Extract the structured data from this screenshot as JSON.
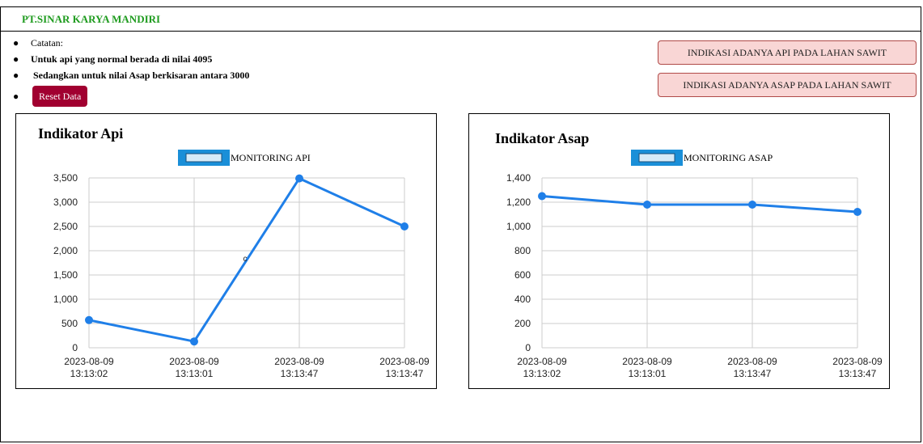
{
  "header": {
    "brand": "PT.SINAR KARYA MANDIRI"
  },
  "notes": {
    "items": [
      "Catatan:",
      "Untuk api yang normal berada di nilai 4095",
      "Sedangkan untuk nilai Asap berkisaran antara 3000"
    ],
    "reset_label": "Reset Data"
  },
  "alerts": {
    "fire": "INDIKASI ADANYA API PADA LAHAN SAWIT",
    "smoke": "INDIKASI ADANYA ASAP PADA LAHAN SAWIT"
  },
  "colors": {
    "accent": "#1f7fe8",
    "legend_fill": "#d6ebf8",
    "legend_border": "#1a8fd8",
    "grid": "#cccccc",
    "alert_bg": "#f9d6d5",
    "alert_border": "#b04a48",
    "reset_bg": "#a10030",
    "brand": "#1e9b1e"
  },
  "chart_data": [
    {
      "type": "line",
      "title": "Indikator Api",
      "legend": "MONITORING API",
      "x": [
        "2023-08-09 13:13:02",
        "2023-08-09 13:13:01",
        "2023-08-09 13:13:47",
        "2023-08-09 13:13:47"
      ],
      "series": [
        {
          "name": "MONITORING API",
          "values": [
            570,
            130,
            3490,
            2500
          ]
        }
      ],
      "ylim": [
        0,
        3500
      ],
      "yticks": [
        0,
        500,
        1000,
        1500,
        2000,
        2500,
        3000,
        3500
      ],
      "annotation": "c",
      "grid": true,
      "legend_position": "top"
    },
    {
      "type": "line",
      "title": "Indikator Asap",
      "legend": "MONITORING ASAP",
      "x": [
        "2023-08-09 13:13:02",
        "2023-08-09 13:13:01",
        "2023-08-09 13:13:47",
        "2023-08-09 13:13:47"
      ],
      "series": [
        {
          "name": "MONITORING ASAP",
          "values": [
            1250,
            1180,
            1180,
            1120
          ]
        }
      ],
      "ylim": [
        0,
        1400
      ],
      "yticks": [
        0,
        200,
        400,
        600,
        800,
        1000,
        1200,
        1400
      ],
      "grid": true,
      "legend_position": "top"
    }
  ]
}
